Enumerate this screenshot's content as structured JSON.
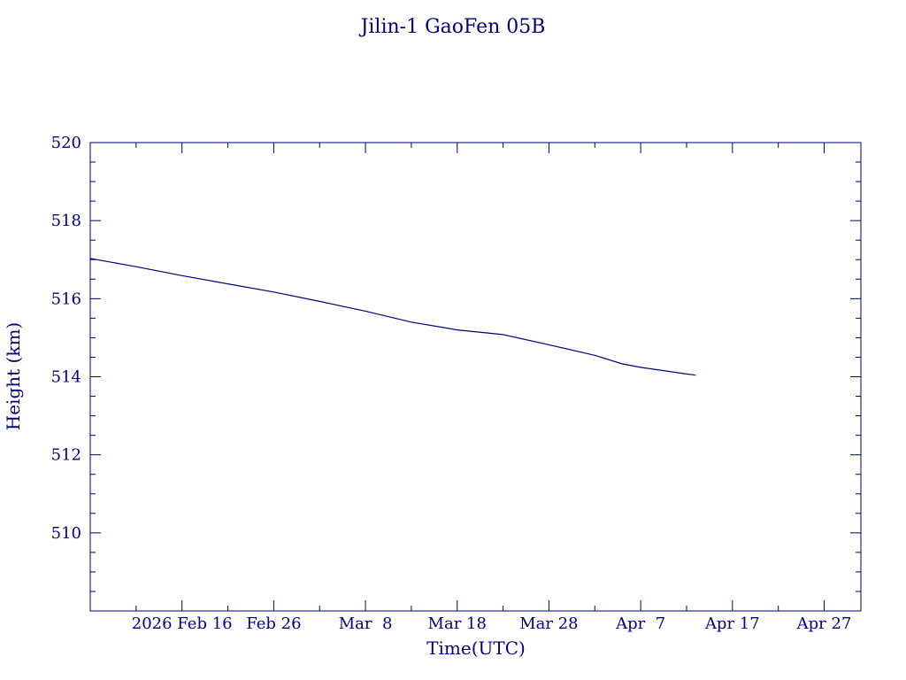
{
  "chart_data": {
    "type": "line",
    "title": "Jilin-1 GaoFen 05B",
    "xlabel": "Time(UTC)",
    "ylabel": "Height (km)",
    "color": "#000080",
    "x_axis": {
      "kind": "date",
      "range": [
        "2026-02-06",
        "2026-05-01"
      ],
      "ticks": [
        {
          "date": "2026-02-16",
          "label": "2026 Feb 16"
        },
        {
          "date": "2026-02-26",
          "label": "Feb 26"
        },
        {
          "date": "2026-03-08",
          "label": "Mar  8"
        },
        {
          "date": "2026-03-18",
          "label": "Mar 18"
        },
        {
          "date": "2026-03-28",
          "label": "Mar 28"
        },
        {
          "date": "2026-04-07",
          "label": "Apr  7"
        },
        {
          "date": "2026-04-17",
          "label": "Apr 17"
        },
        {
          "date": "2026-04-27",
          "label": "Apr 27"
        }
      ]
    },
    "y_axis": {
      "range": [
        508,
        520
      ],
      "ticks": [
        510,
        512,
        514,
        516,
        518,
        520
      ]
    },
    "grid": false,
    "series": [
      {
        "x": [
          "2026-02-06",
          "2026-02-11",
          "2026-02-16",
          "2026-02-21",
          "2026-02-26",
          "2026-03-03",
          "2026-03-08",
          "2026-03-13",
          "2026-03-18",
          "2026-03-23",
          "2026-03-28",
          "2026-04-02",
          "2026-04-05",
          "2026-04-07",
          "2026-04-12",
          "2026-04-13"
        ],
        "y": [
          517.03,
          516.82,
          516.59,
          516.38,
          516.17,
          515.93,
          515.68,
          515.4,
          515.2,
          515.08,
          514.82,
          514.55,
          514.33,
          514.24,
          514.07,
          514.04
        ]
      }
    ]
  }
}
